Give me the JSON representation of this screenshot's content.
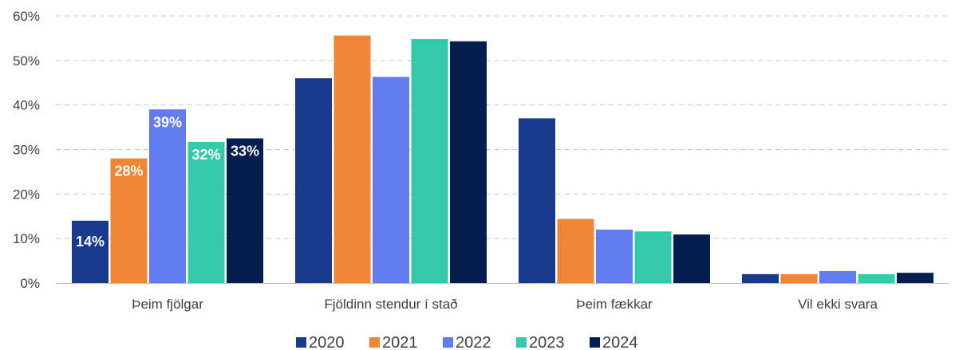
{
  "chart_data": {
    "type": "bar",
    "categories": [
      "Þeim fjölgar",
      "Fjöldinn stendur í stað",
      "Þeim fækkar",
      "Vil ekki svara"
    ],
    "series": [
      {
        "name": "2020",
        "color": "#173a8c",
        "values": [
          14,
          46,
          37,
          2
        ]
      },
      {
        "name": "2021",
        "color": "#f08535",
        "values": [
          28,
          55.6,
          14.4,
          2
        ]
      },
      {
        "name": "2022",
        "color": "#627cf0",
        "values": [
          39,
          46.3,
          12,
          2.7
        ]
      },
      {
        "name": "2023",
        "color": "#33c9a9",
        "values": [
          31.7,
          54.8,
          11.6,
          2
        ]
      },
      {
        "name": "2024",
        "color": "#041e4f",
        "values": [
          32.5,
          54.3,
          10.9,
          2.3
        ]
      }
    ],
    "data_labels": [
      [
        "14%",
        null,
        null,
        null
      ],
      [
        "28%",
        null,
        null,
        null
      ],
      [
        "39%",
        null,
        null,
        null
      ],
      [
        "32%",
        null,
        null,
        null
      ],
      [
        "33%",
        null,
        null,
        null
      ]
    ],
    "y_ticks": [
      "0%",
      "10%",
      "20%",
      "30%",
      "40%",
      "50%",
      "60%"
    ],
    "ylim": [
      0,
      60
    ],
    "grid": true,
    "legend_position": "bottom",
    "title": "",
    "xlabel": "",
    "ylabel": ""
  }
}
